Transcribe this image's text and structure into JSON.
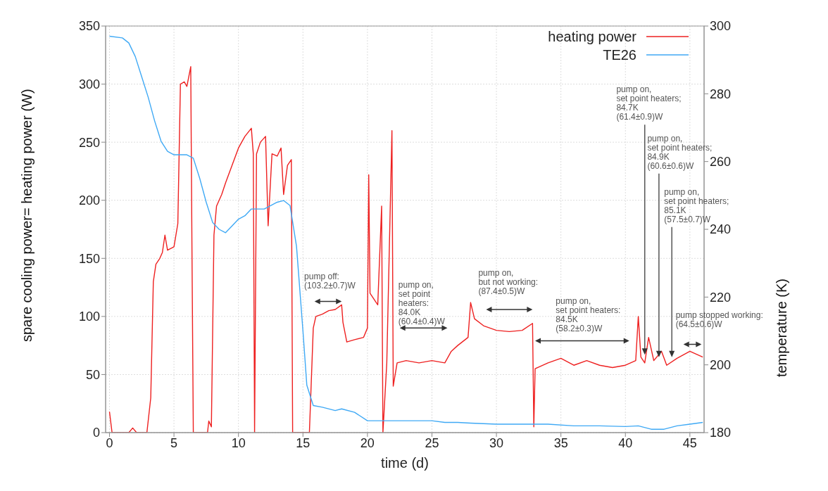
{
  "chart_data": {
    "type": "line",
    "xlabel": "time (d)",
    "ylabel": "spare cooling power= heating power (W)",
    "y2label": "temperature (K)",
    "xlim": [
      -0.3,
      46.1
    ],
    "xticks": [
      0,
      5,
      10,
      15,
      20,
      25,
      30,
      35,
      40,
      45
    ],
    "ylim": [
      0,
      350
    ],
    "yticks": [
      0,
      50,
      100,
      150,
      200,
      250,
      300,
      350
    ],
    "y2lim": [
      180,
      300
    ],
    "y2ticks": [
      180,
      200,
      220,
      240,
      260,
      280,
      300
    ],
    "grid": true,
    "legend": "top right",
    "series": [
      {
        "name": "heating power",
        "color": "#ee2020",
        "x": [
          0,
          0.2,
          1.5,
          1.8,
          2.1,
          2.9,
          3.2,
          3.4,
          3.6,
          3.9,
          4.1,
          4.3,
          4.5,
          5.0,
          5.3,
          5.5,
          5.8,
          6.0,
          6.3,
          6.4,
          6.5,
          7.6,
          7.7,
          7.9,
          8.1,
          8.3,
          8.7,
          9.0,
          9.5,
          10.0,
          10.5,
          11.0,
          11.15,
          11.25,
          11.4,
          11.7,
          12.1,
          12.3,
          12.6,
          13.0,
          13.3,
          13.5,
          13.8,
          14.1,
          14.2,
          15.5,
          15.8,
          16.0,
          16.5,
          17.0,
          17.5,
          18.0,
          18.1,
          18.4,
          19.0,
          19.7,
          20.0,
          20.1,
          20.2,
          20.8,
          21.1,
          21.2,
          21.5,
          21.9,
          22.0,
          22.3,
          23.0,
          24.0,
          25.0,
          26.0,
          26.5,
          27.0,
          27.8,
          28.0,
          28.3,
          29.0,
          30.0,
          31.0,
          32.0,
          32.8,
          32.9,
          33.0,
          34.0,
          35.0,
          36.0,
          37.0,
          38.0,
          39.0,
          40.0,
          40.8,
          41.0,
          41.2,
          41.5,
          41.8,
          42.2,
          42.8,
          43.2,
          44.0,
          45.0,
          46.0
        ],
        "values": [
          18,
          0,
          0,
          4,
          0,
          0,
          30,
          130,
          145,
          150,
          155,
          170,
          157,
          160,
          180,
          300,
          302,
          298,
          315,
          150,
          0,
          0,
          10,
          5,
          170,
          195,
          205,
          215,
          230,
          245,
          255,
          262,
          240,
          0,
          240,
          250,
          255,
          178,
          240,
          238,
          245,
          205,
          230,
          235,
          0,
          0,
          90,
          100,
          102,
          105,
          106,
          110,
          95,
          78,
          80,
          82,
          90,
          222,
          120,
          110,
          195,
          0,
          60,
          260,
          40,
          60,
          62,
          60,
          62,
          60,
          70,
          75,
          82,
          112,
          98,
          92,
          88,
          87,
          88,
          94,
          5,
          55,
          60,
          64,
          58,
          62,
          58,
          56,
          58,
          62,
          100,
          65,
          60,
          82,
          62,
          70,
          58,
          64,
          70,
          65
        ]
      },
      {
        "name": "TE26",
        "color": "#3fa9f5",
        "axis": "y2",
        "x": [
          0,
          1,
          1.5,
          2,
          2.5,
          3,
          3.5,
          4,
          4.5,
          5,
          6,
          6.5,
          7,
          7.5,
          8,
          8.5,
          9,
          9.5,
          10,
          10.5,
          11,
          12,
          13,
          13.5,
          14,
          14.5,
          15,
          15.3,
          15.8,
          16.5,
          17.5,
          18,
          19,
          20,
          22,
          24,
          25,
          26,
          27,
          28,
          30,
          32,
          34,
          36,
          38,
          40,
          41,
          42,
          43,
          44,
          45,
          46
        ],
        "values": [
          297,
          296.5,
          295,
          291,
          285,
          279,
          272,
          266,
          263,
          262,
          262,
          261,
          255,
          248,
          242,
          240,
          239,
          241,
          243,
          244,
          246,
          246,
          248,
          248.5,
          247,
          235,
          210,
          194,
          188,
          187.5,
          186.5,
          187,
          186,
          183.5,
          183.5,
          183.5,
          183.5,
          183,
          183,
          182.8,
          182.5,
          182.5,
          182.5,
          182,
          182,
          181.8,
          182,
          181,
          181,
          182,
          182.5,
          183
        ]
      }
    ],
    "annotations": [
      "pump off:\n(103.2±0.7)W",
      "pump on,\nset point\nheaters:\n84.0K\n(60.4±0.4)W",
      "pump on,\nbut not working:\n(87.4±0.5)W",
      "pump on,\nset point heaters:\n84.5K\n(58.2±0.3)W",
      {
        "text": "pump on,\nset point heaters;\n84.7K\n(61.4±0.9)W",
        "x": 41.5,
        "y": 67
      },
      {
        "text": "pump on,\nset point heaters;\n84.9K\n(60.6±0.6)W",
        "x": 42.6,
        "y": 65
      },
      {
        "text": "pump on,\nset point heaters;\n85.1K\n(57.5±0.7)W",
        "x": 43.6,
        "y": 65
      },
      "pump stopped working:\n(64.5±0.6)W"
    ]
  }
}
